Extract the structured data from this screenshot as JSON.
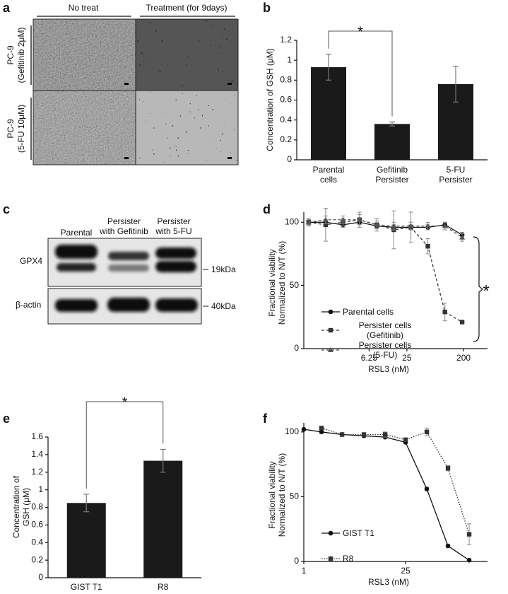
{
  "panel_a": {
    "label": "a",
    "columns": [
      "No treat",
      "Treatment (for 9days)"
    ],
    "rows": [
      [
        "PC-9",
        "(Gefitinib 2μM)"
      ],
      [
        "PC-9",
        "(5-FU 10μM)"
      ]
    ]
  },
  "panel_c": {
    "label": "c",
    "columns": [
      "Parental",
      "Persister\nwith Gefitinib",
      "Persister\nwith 5-FU"
    ],
    "rows": [
      "GPX4",
      "β-actin"
    ],
    "markers": [
      "19kDa",
      "40kDa"
    ]
  },
  "chart_data": [
    {
      "label": "b",
      "type": "bar",
      "categories": [
        "Parental\ncells",
        "Gefitinib\nPersister",
        "5-FU\nPersister"
      ],
      "values": [
        0.93,
        0.36,
        0.76
      ],
      "errors": [
        0.13,
        0.02,
        0.18
      ],
      "color": "#1a1a1a",
      "y_label": "Concentration of GSH (μM)",
      "ylim": [
        0,
        1.2
      ],
      "yticks": [
        0,
        0.2,
        0.4,
        0.6,
        0.8,
        1,
        1.2
      ],
      "annotation": "*"
    },
    {
      "label": "d",
      "type": "line",
      "xscale": "log",
      "x_label": "RSL3 (nM)",
      "y_label": "Fractional viability\nNormalized to N/T (%)",
      "x": [
        0.68,
        1.27,
        2.4,
        4.4,
        8.3,
        15.5,
        29,
        54,
        101,
        190
      ],
      "xlim": [
        0.57,
        482
      ],
      "xticks": [
        6.25,
        25,
        200
      ],
      "ylim": [
        0,
        108
      ],
      "yticks": [
        0,
        50,
        100
      ],
      "series": [
        {
          "name": "Parental cells",
          "color": "#111111",
          "marker": "circle",
          "dash": "solid",
          "values": [
            100,
            100,
            98,
            100,
            97,
            96,
            96,
            96,
            98,
            90
          ],
          "errors": [
            2,
            2,
            2,
            2,
            2,
            2,
            2,
            2,
            2,
            2
          ]
        },
        {
          "name": "Persister cells\n(Gefitinib)",
          "color": "#333333",
          "marker": "square",
          "dash": "dashed",
          "values": [
            100,
            98,
            100,
            102,
            98,
            94,
            96,
            81,
            29,
            21
          ],
          "errors": [
            3,
            13,
            3,
            4,
            5,
            15,
            12,
            6,
            7,
            1
          ]
        },
        {
          "name": "Persister cells\n(5-FU)",
          "color": "#555555",
          "marker": "triangle",
          "dash": "dashed",
          "values": [
            100,
            102,
            102,
            102,
            98,
            97,
            97,
            97,
            97,
            88
          ],
          "errors": [
            2,
            3,
            3,
            6,
            3,
            3,
            3,
            3,
            3,
            3
          ]
        }
      ],
      "annotation": "*"
    },
    {
      "label": "e",
      "type": "bar",
      "categories": [
        "GIST T1",
        "R8"
      ],
      "values": [
        0.85,
        1.33
      ],
      "errors": [
        0.1,
        0.13
      ],
      "color": "#1a1a1a",
      "y_label": "Concentration of\nGSH (μM)",
      "ylim": [
        0,
        1.6
      ],
      "yticks": [
        0,
        0.2,
        0.4,
        0.6,
        0.8,
        1,
        1.2,
        1.4,
        1.6
      ],
      "annotation": "*"
    },
    {
      "label": "f",
      "type": "line",
      "xscale": "log",
      "x_label": "RSL3 (nM)",
      "y_label": "Fractional viability\nNormalized to N/T (%)",
      "x": [
        1,
        1.75,
        3.35,
        6.7,
        13.1,
        25,
        48.9,
        95.6,
        187
      ],
      "xlim": [
        1,
        334
      ],
      "xticks": [
        1,
        25
      ],
      "ylim": [
        0,
        107
      ],
      "yticks": [
        0,
        50,
        100
      ],
      "series": [
        {
          "name": "GIST T1",
          "color": "#111111",
          "marker": "circle",
          "dash": "solid",
          "values": [
            102,
            100,
            98,
            97,
            96,
            92,
            56,
            12,
            1
          ],
          "errors": [
            1,
            1,
            1,
            1,
            1,
            1,
            1,
            1,
            1
          ]
        },
        {
          "name": "R8",
          "color": "#333333",
          "marker": "square",
          "dash": "dotted",
          "values": [
            null,
            103,
            98,
            98,
            98,
            94,
            100,
            72,
            21
          ],
          "errors": [
            null,
            1,
            1,
            1,
            2,
            1,
            3,
            2,
            8
          ]
        }
      ]
    }
  ]
}
